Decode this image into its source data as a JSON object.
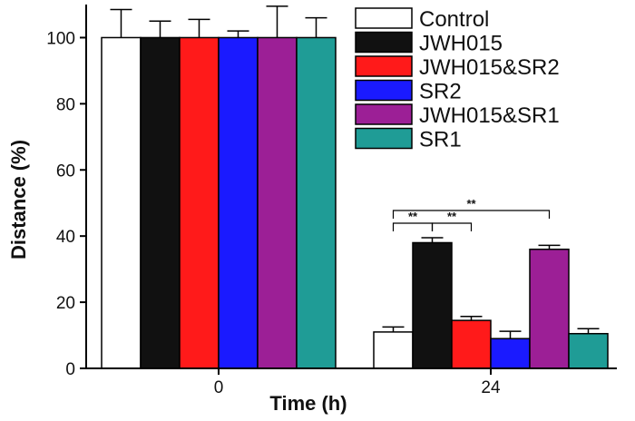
{
  "chart_data": {
    "type": "bar",
    "title": "",
    "xlabel": "Time (h)",
    "ylabel": "Distance (%)",
    "ylim": [
      0,
      110
    ],
    "yticks": [
      0,
      20,
      40,
      60,
      80,
      100
    ],
    "categories": [
      "0",
      "24"
    ],
    "grid": false,
    "legend_position": "top-right",
    "series": [
      {
        "name": "Control",
        "color": "#ffffff",
        "values": [
          100,
          11
        ],
        "errors": [
          8.5,
          1.5
        ]
      },
      {
        "name": "JWH015",
        "color": "#111111",
        "values": [
          100,
          38
        ],
        "errors": [
          5,
          1.5
        ]
      },
      {
        "name": "JWH015&SR2",
        "color": "#ff1a1a",
        "values": [
          100,
          14.5
        ],
        "errors": [
          5.5,
          1.2
        ]
      },
      {
        "name": "SR2",
        "color": "#1a1aff",
        "values": [
          100,
          9
        ],
        "errors": [
          2,
          2.2
        ]
      },
      {
        "name": "JWH015&SR1",
        "color": "#9c1f96",
        "values": [
          100,
          36
        ],
        "errors": [
          9.5,
          1.2
        ]
      },
      {
        "name": "SR1",
        "color": "#1f9c96",
        "values": [
          100,
          10.5
        ],
        "errors": [
          6,
          1.5
        ]
      }
    ],
    "annotations": [
      {
        "category": "24",
        "from": "Control",
        "to": "JWH015",
        "text": "**"
      },
      {
        "category": "24",
        "from": "JWH015",
        "to": "JWH015&SR2",
        "text": "**"
      },
      {
        "category": "24",
        "from": "Control",
        "to": "JWH015&SR1",
        "text": "**"
      }
    ]
  }
}
